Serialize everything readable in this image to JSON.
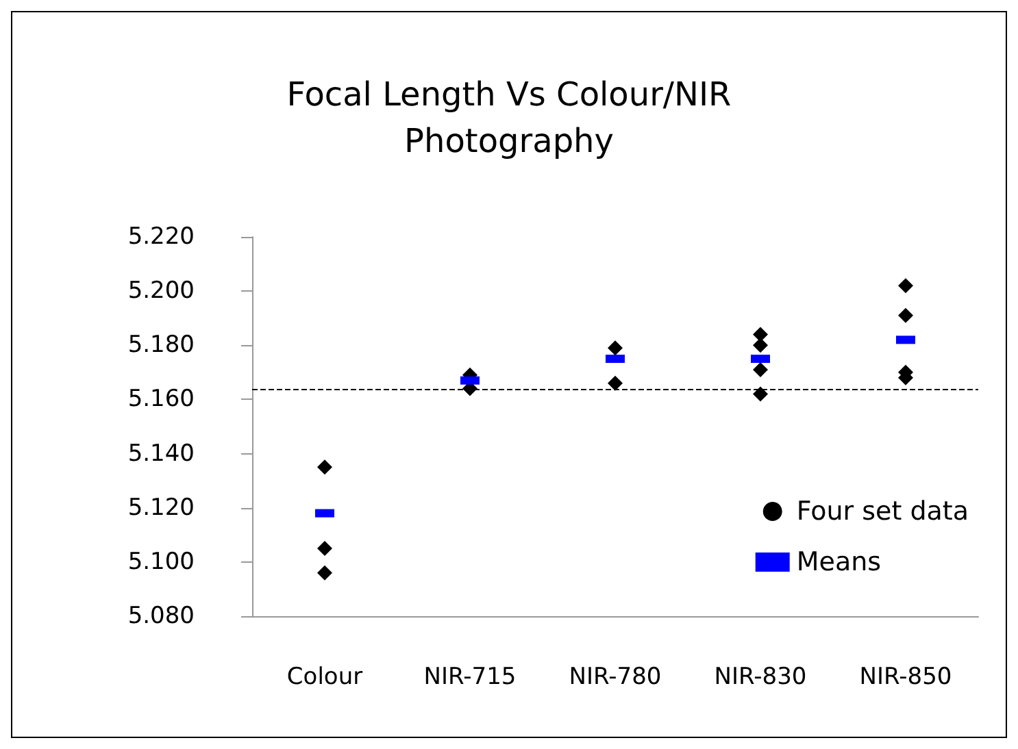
{
  "chart_data": {
    "type": "scatter",
    "title": "Focal Length Vs Colour/NIR\nPhotography",
    "categories": [
      "Colour",
      "NIR-715",
      "NIR-780",
      "NIR-830",
      "NIR-850"
    ],
    "series": [
      {
        "name": "Four set data",
        "type": "scatter",
        "color": "#000000",
        "marker": "diamond",
        "x": [
          "Colour",
          "Colour",
          "Colour",
          "Colour",
          "NIR-715",
          "NIR-715",
          "NIR-715",
          "NIR-715",
          "NIR-780",
          "NIR-780",
          "NIR-780",
          "NIR-780",
          "NIR-830",
          "NIR-830",
          "NIR-830",
          "NIR-830",
          "NIR-850",
          "NIR-850",
          "NIR-850",
          "NIR-850"
        ],
        "values": [
          null,
          5.135,
          5.105,
          5.096,
          5.169,
          null,
          null,
          5.164,
          5.179,
          null,
          null,
          5.166,
          5.184,
          5.18,
          5.171,
          5.162,
          5.202,
          5.191,
          5.17,
          5.168
        ]
      },
      {
        "name": "Means",
        "type": "scatter",
        "color": "#0000ff",
        "marker": "square",
        "values": [
          5.118,
          5.167,
          5.175,
          5.175,
          5.182
        ]
      }
    ],
    "ylim": [
      5.08,
      5.22
    ],
    "yticks": [
      {
        "value": 5.08,
        "label": "5.080"
      },
      {
        "value": 5.1,
        "label": "5.100"
      },
      {
        "value": 5.12,
        "label": "5.120"
      },
      {
        "value": 5.14,
        "label": "5.140"
      },
      {
        "value": 5.16,
        "label": "5.160"
      },
      {
        "value": 5.18,
        "label": "5.180"
      },
      {
        "value": 5.2,
        "label": "5.200"
      },
      {
        "value": 5.22,
        "label": "5.220"
      }
    ],
    "ref_lines": [
      {
        "axis": "y",
        "value": 5.164,
        "color": "#000000",
        "line_style": "dashed"
      }
    ],
    "grid": false,
    "legend": "right"
  }
}
